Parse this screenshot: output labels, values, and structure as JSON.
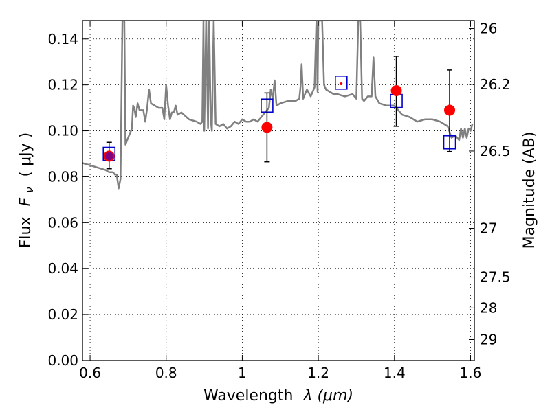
{
  "chart_data": {
    "type": "scatter",
    "xlabel_prefix": "Wavelength",
    "xlabel_math": "λ (μm)",
    "ylabel_prefix": "Flux",
    "ylabel_math": "F",
    "ylabel_sub": "ν",
    "ylabel_units": "( μJy )",
    "y2label": "Magnitude (AB)",
    "xlim": [
      0.58,
      1.61
    ],
    "ylim": [
      0.0,
      0.148
    ],
    "grid": true,
    "xticks": [
      {
        "value": 0.6,
        "label": "0.6"
      },
      {
        "value": 0.8,
        "label": "0.8"
      },
      {
        "value": 1.0,
        "label": "1"
      },
      {
        "value": 1.2,
        "label": "1.2"
      },
      {
        "value": 1.4,
        "label": "1.4"
      },
      {
        "value": 1.6,
        "label": "1.6"
      }
    ],
    "yticks": [
      {
        "value": 0.0,
        "label": "0.00"
      },
      {
        "value": 0.02,
        "label": "0.02"
      },
      {
        "value": 0.04,
        "label": "0.04"
      },
      {
        "value": 0.06,
        "label": "0.06"
      },
      {
        "value": 0.08,
        "label": "0.08"
      },
      {
        "value": 0.1,
        "label": "0.10"
      },
      {
        "value": 0.12,
        "label": "0.12"
      },
      {
        "value": 0.14,
        "label": "0.14"
      }
    ],
    "y2ticks": [
      {
        "value": 26.0,
        "label": "26"
      },
      {
        "value": 26.2,
        "label": "26.2"
      },
      {
        "value": 26.5,
        "label": "26.5"
      },
      {
        "value": 27.0,
        "label": "27"
      },
      {
        "value": 27.5,
        "label": "27.5"
      },
      {
        "value": 28.0,
        "label": "28"
      },
      {
        "value": 29.0,
        "label": "29"
      }
    ],
    "series": [
      {
        "kind": "model_spectrum",
        "color": "#808080",
        "x": [
          0.58,
          0.6,
          0.62,
          0.64,
          0.65,
          0.66,
          0.665,
          0.67,
          0.675,
          0.68,
          0.685,
          0.69,
          0.693,
          0.7,
          0.705,
          0.71,
          0.713,
          0.716,
          0.72,
          0.725,
          0.73,
          0.74,
          0.745,
          0.75,
          0.755,
          0.76,
          0.77,
          0.78,
          0.79,
          0.795,
          0.8,
          0.805,
          0.81,
          0.815,
          0.82,
          0.825,
          0.83,
          0.84,
          0.86,
          0.88,
          0.89,
          0.895,
          0.898,
          0.9,
          0.905,
          0.91,
          0.913,
          0.917,
          0.92,
          0.925,
          0.93,
          0.94,
          0.95,
          0.96,
          0.97,
          0.98,
          0.99,
          1.0,
          1.01,
          1.02,
          1.03,
          1.04,
          1.05,
          1.06,
          1.07,
          1.075,
          1.08,
          1.085,
          1.09,
          1.1,
          1.12,
          1.14,
          1.15,
          1.153,
          1.156,
          1.16,
          1.17,
          1.18,
          1.19,
          1.195,
          1.198,
          1.2,
          1.205,
          1.21,
          1.215,
          1.22,
          1.23,
          1.24,
          1.25,
          1.27,
          1.29,
          1.3,
          1.305,
          1.31,
          1.315,
          1.32,
          1.33,
          1.34,
          1.345,
          1.35,
          1.36,
          1.38,
          1.4,
          1.42,
          1.44,
          1.46,
          1.48,
          1.5,
          1.52,
          1.53,
          1.54,
          1.55,
          1.56,
          1.57,
          1.575,
          1.58,
          1.585,
          1.59,
          1.595,
          1.6,
          1.605
        ],
        "y": [
          0.086,
          0.085,
          0.084,
          0.083,
          0.082,
          0.082,
          0.081,
          0.081,
          0.075,
          0.079,
          0.148,
          0.148,
          0.094,
          0.097,
          0.099,
          0.101,
          0.111,
          0.11,
          0.106,
          0.112,
          0.109,
          0.109,
          0.104,
          0.11,
          0.118,
          0.112,
          0.111,
          0.11,
          0.11,
          0.105,
          0.12,
          0.111,
          0.105,
          0.108,
          0.108,
          0.111,
          0.107,
          0.108,
          0.105,
          0.104,
          0.103,
          0.104,
          0.148,
          0.1,
          0.148,
          0.101,
          0.148,
          0.105,
          0.1,
          0.148,
          0.103,
          0.102,
          0.103,
          0.101,
          0.102,
          0.104,
          0.103,
          0.105,
          0.104,
          0.104,
          0.105,
          0.104,
          0.106,
          0.108,
          0.11,
          0.118,
          0.114,
          0.122,
          0.111,
          0.112,
          0.113,
          0.113,
          0.114,
          0.119,
          0.129,
          0.114,
          0.118,
          0.115,
          0.119,
          0.148,
          0.117,
          0.148,
          0.148,
          0.148,
          0.12,
          0.118,
          0.117,
          0.116,
          0.116,
          0.115,
          0.116,
          0.114,
          0.148,
          0.148,
          0.114,
          0.113,
          0.115,
          0.115,
          0.132,
          0.115,
          0.112,
          0.111,
          0.111,
          0.107,
          0.106,
          0.104,
          0.105,
          0.105,
          0.104,
          0.103,
          0.102,
          0.097,
          0.098,
          0.096,
          0.101,
          0.097,
          0.101,
          0.097,
          0.101,
          0.1,
          0.103
        ]
      },
      {
        "kind": "model_photometry",
        "marker": "open-square",
        "color": "#0000cc",
        "x": [
          0.65,
          1.065,
          1.26,
          1.405,
          1.545
        ],
        "y": [
          0.09,
          0.111,
          0.121,
          0.113,
          0.095
        ]
      },
      {
        "kind": "observed_photometry",
        "marker": "filled-circle",
        "color": "#ff0000",
        "x": [
          0.65,
          1.065,
          1.26,
          1.405,
          1.545
        ],
        "y": [
          0.089,
          0.1015,
          0.1205,
          0.1175,
          0.109
        ],
        "yerr_low": [
          0.0835,
          0.0865,
          null,
          0.102,
          0.091
        ],
        "yerr_high": [
          0.095,
          0.1165,
          null,
          0.1325,
          0.1265
        ]
      }
    ],
    "extra_markers": [
      {
        "marker": "filled-circle",
        "color": "#800080",
        "x": 0.65,
        "y": 0.089
      }
    ]
  }
}
